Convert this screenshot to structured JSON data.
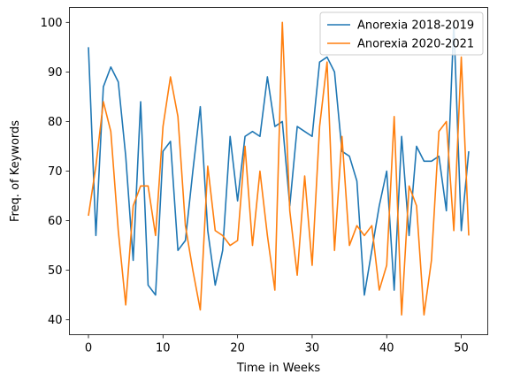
{
  "chart_data": {
    "type": "line",
    "xlabel": "Time in Weeks",
    "ylabel": "Freq. of Keywords",
    "xlim": [
      -2.55,
      53.55
    ],
    "ylim": [
      37,
      103
    ],
    "xticks": [
      0,
      10,
      20,
      30,
      40,
      50
    ],
    "yticks": [
      40,
      50,
      60,
      70,
      80,
      90,
      100
    ],
    "grid": false,
    "legend_position": "top-right",
    "x": [
      0,
      1,
      2,
      3,
      4,
      5,
      6,
      7,
      8,
      9,
      10,
      11,
      12,
      13,
      14,
      15,
      16,
      17,
      18,
      19,
      20,
      21,
      22,
      23,
      24,
      25,
      26,
      27,
      28,
      29,
      30,
      31,
      32,
      33,
      34,
      35,
      36,
      37,
      38,
      39,
      40,
      41,
      42,
      43,
      44,
      45,
      46,
      47,
      48,
      49,
      50,
      51
    ],
    "series": [
      {
        "name": "Anorexia 2018-2019",
        "color": "#1f77b4",
        "values": [
          95,
          57,
          87,
          91,
          88,
          73,
          52,
          84,
          47,
          45,
          74,
          76,
          54,
          56,
          70,
          83,
          58,
          47,
          54,
          77,
          64,
          77,
          78,
          77,
          89,
          79,
          80,
          63,
          79,
          78,
          77,
          92,
          93,
          90,
          74,
          73,
          68,
          45,
          54,
          63,
          70,
          46,
          77,
          57,
          75,
          72,
          72,
          73,
          62,
          100,
          58,
          74
        ]
      },
      {
        "name": "Anorexia 2020-2021",
        "color": "#ff7f0e",
        "values": [
          61,
          71,
          84,
          78,
          58,
          43,
          63,
          67,
          67,
          57,
          79,
          89,
          81,
          59,
          50,
          42,
          71,
          58,
          57,
          55,
          56,
          75,
          55,
          70,
          57,
          46,
          100,
          62,
          49,
          69,
          51,
          79,
          92,
          54,
          77,
          55,
          59,
          57,
          59,
          46,
          51,
          81,
          41,
          67,
          63,
          41,
          52,
          78,
          80,
          58,
          93,
          57
        ]
      }
    ]
  }
}
